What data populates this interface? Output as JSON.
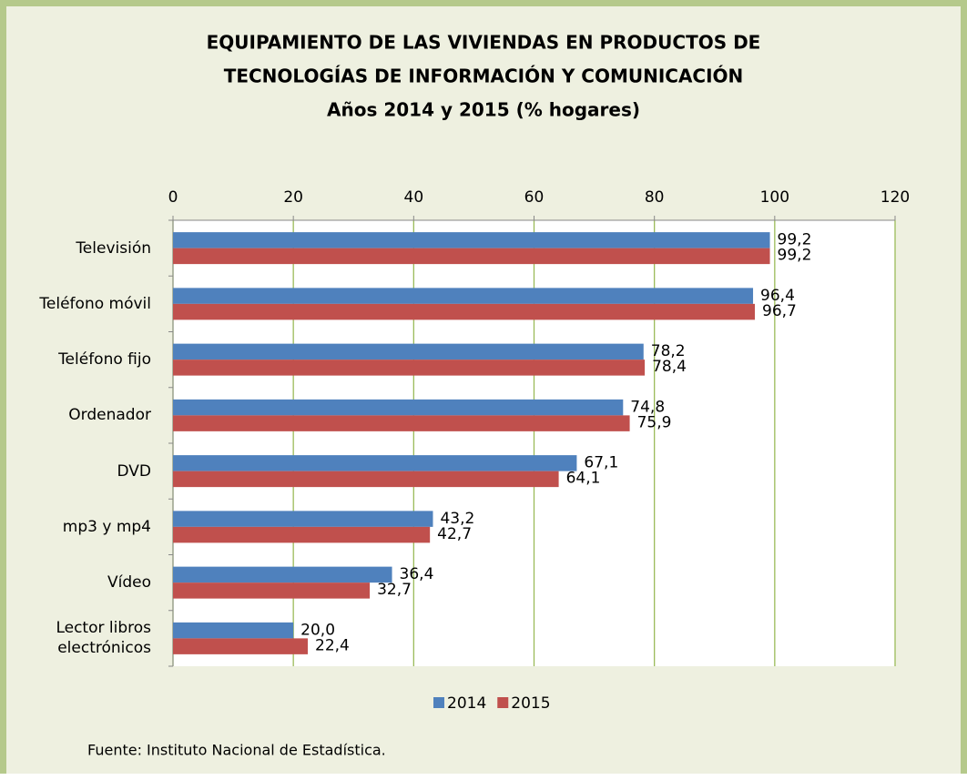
{
  "chart_data": {
    "type": "bar",
    "orientation": "horizontal",
    "title": [
      "EQUIPAMIENTO DE LAS VIVIENDAS EN PRODUCTOS DE",
      "TECNOLOGÍAS DE INFORMACIÓN Y COMUNICACIÓN"
    ],
    "subtitle": "Años 2014 y 2015 (% hogares)",
    "categories": [
      "Televisión",
      "Teléfono móvil",
      "Teléfono fijo",
      "Ordenador",
      "DVD",
      "mp3 y mp4",
      "Vídeo",
      "Lector libros electrónicos"
    ],
    "series": [
      {
        "name": "2014",
        "color": "#4f81bd",
        "values": [
          99.2,
          96.4,
          78.2,
          74.8,
          67.1,
          43.2,
          36.4,
          20.0
        ],
        "value_labels": [
          "99,2",
          "96,4",
          "78,2",
          "74,8",
          "67,1",
          "43,2",
          "36,4",
          "20,0"
        ]
      },
      {
        "name": "2015",
        "color": "#c0504d",
        "values": [
          99.2,
          96.7,
          78.4,
          75.9,
          64.1,
          42.7,
          32.7,
          22.4
        ],
        "value_labels": [
          "99,2",
          "96,7",
          "78,4",
          "75,9",
          "64,1",
          "42,7",
          "32,7",
          "22,4"
        ]
      }
    ],
    "xlim": [
      0,
      120
    ],
    "xticks": [
      0,
      20,
      40,
      60,
      80,
      100,
      120
    ],
    "grid": true,
    "legend": "bottom",
    "source": "Fuente: Instituto Nacional de Estadística."
  }
}
